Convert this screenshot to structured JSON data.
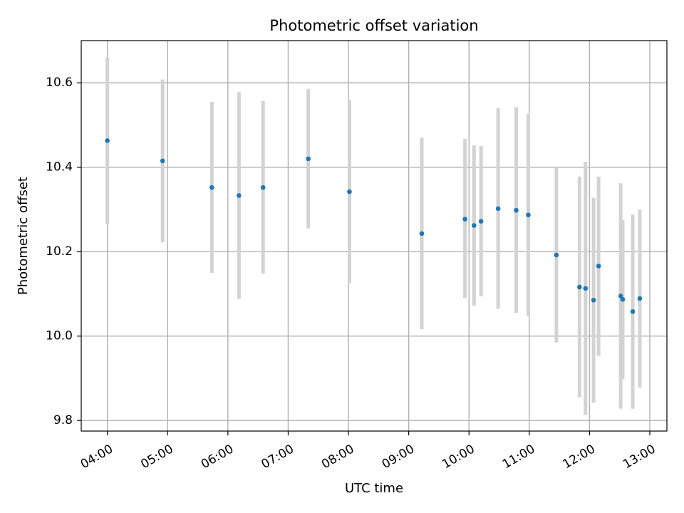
{
  "chart_data": {
    "type": "scatter",
    "title": "Photometric offset variation",
    "xlabel": "UTC time",
    "ylabel": "Photometric offset",
    "xlim": [
      "03:34",
      "13:17"
    ],
    "ylim": [
      9.775,
      10.7
    ],
    "x_ticks": [
      "04:00",
      "05:00",
      "06:00",
      "07:00",
      "08:00",
      "09:00",
      "10:00",
      "11:00",
      "12:00",
      "13:00"
    ],
    "y_ticks": [
      9.8,
      10.0,
      10.2,
      10.4,
      10.6
    ],
    "y_tick_labels": [
      "9.8",
      "10.0",
      "10.2",
      "10.4",
      "10.6"
    ],
    "grid": true,
    "colors": {
      "points": "#1f77b4",
      "error_bars": "#d3d3d3"
    },
    "points": [
      {
        "time": "04:00",
        "y": 10.463,
        "low": 10.265,
        "high": 10.66
      },
      {
        "time": "04:55",
        "y": 10.415,
        "low": 10.222,
        "high": 10.608
      },
      {
        "time": "05:44",
        "y": 10.352,
        "low": 10.15,
        "high": 10.555
      },
      {
        "time": "06:11",
        "y": 10.333,
        "low": 10.088,
        "high": 10.578
      },
      {
        "time": "06:35",
        "y": 10.352,
        "low": 10.148,
        "high": 10.557
      },
      {
        "time": "07:20",
        "y": 10.42,
        "low": 10.255,
        "high": 10.585
      },
      {
        "time": "08:01",
        "y": 10.342,
        "low": 10.125,
        "high": 10.56
      },
      {
        "time": "09:13",
        "y": 10.243,
        "low": 10.016,
        "high": 10.47
      },
      {
        "time": "09:56",
        "y": 10.277,
        "low": 10.09,
        "high": 10.467
      },
      {
        "time": "10:05",
        "y": 10.262,
        "low": 10.072,
        "high": 10.452
      },
      {
        "time": "10:12",
        "y": 10.272,
        "low": 10.094,
        "high": 10.45
      },
      {
        "time": "10:29",
        "y": 10.302,
        "low": 10.065,
        "high": 10.54
      },
      {
        "time": "10:47",
        "y": 10.298,
        "low": 10.055,
        "high": 10.542
      },
      {
        "time": "10:59",
        "y": 10.287,
        "low": 10.047,
        "high": 10.527
      },
      {
        "time": "11:27",
        "y": 10.192,
        "low": 9.985,
        "high": 10.398
      },
      {
        "time": "11:50",
        "y": 10.116,
        "low": 9.855,
        "high": 10.378
      },
      {
        "time": "11:56",
        "y": 10.113,
        "low": 9.813,
        "high": 10.413
      },
      {
        "time": "12:04",
        "y": 10.085,
        "low": 9.842,
        "high": 10.328
      },
      {
        "time": "12:09",
        "y": 10.166,
        "low": 9.953,
        "high": 10.378
      },
      {
        "time": "12:31",
        "y": 10.095,
        "low": 9.828,
        "high": 10.362
      },
      {
        "time": "12:33",
        "y": 10.087,
        "low": 9.898,
        "high": 10.275
      },
      {
        "time": "12:43",
        "y": 10.058,
        "low": 9.828,
        "high": 10.288
      },
      {
        "time": "12:50",
        "y": 10.089,
        "low": 9.878,
        "high": 10.3
      }
    ]
  }
}
